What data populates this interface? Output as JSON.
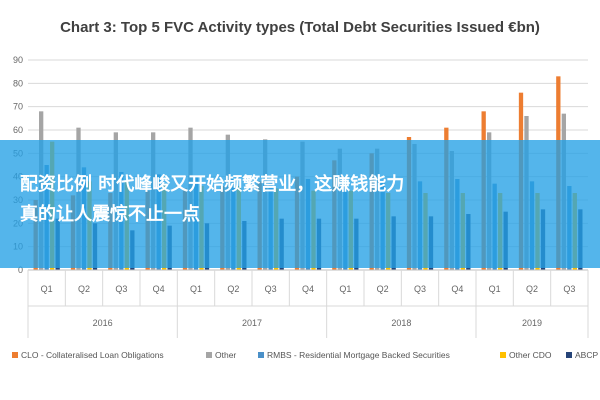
{
  "chart_data": {
    "type": "bar",
    "title": "Chart 3: Top 5 FVC Activity types (Total Debt Securities Issued €bn)",
    "ylim": [
      0,
      90
    ],
    "yticks": [
      0,
      10,
      20,
      30,
      40,
      50,
      60,
      70,
      80,
      90
    ],
    "grid": true,
    "legend_position": "bottom",
    "categories": [
      "Q1",
      "Q2",
      "Q3",
      "Q4",
      "Q1",
      "Q2",
      "Q3",
      "Q4",
      "Q1",
      "Q2",
      "Q3",
      "Q4",
      "Q1",
      "Q2",
      "Q3"
    ],
    "years": [
      {
        "label": "2016",
        "span": 4
      },
      {
        "label": "2017",
        "span": 4
      },
      {
        "label": "2018",
        "span": 4
      },
      {
        "label": "2019",
        "span": 3
      }
    ],
    "series": [
      {
        "name": "CLO - Collateralised Loan Obligations",
        "color": "#ed7d31",
        "values": [
          30,
          32,
          33,
          34,
          35,
          36,
          38,
          40,
          47,
          50,
          57,
          61,
          68,
          76,
          83
        ]
      },
      {
        "name": "Other",
        "color": "#a5a5a5",
        "values": [
          68,
          61,
          59,
          59,
          61,
          58,
          56,
          55,
          52,
          52,
          54,
          51,
          59,
          66,
          67
        ]
      },
      {
        "name": "RMBS - Residential Mortgage Backed Securities",
        "color": "#4a90c8",
        "values": [
          45,
          44,
          42,
          41,
          40,
          39,
          38,
          39,
          37,
          38,
          38,
          39,
          37,
          38,
          36
        ]
      },
      {
        "name": "Other CDO",
        "color": "#ffc000",
        "values": [
          55,
          38,
          38,
          37,
          36,
          36,
          35,
          34,
          34,
          33,
          33,
          33,
          33,
          33,
          33
        ]
      },
      {
        "name": "ABCP",
        "color": "#264478",
        "values": [
          22,
          20,
          17,
          19,
          20,
          21,
          22,
          22,
          22,
          23,
          23,
          24,
          25,
          26,
          26
        ]
      }
    ]
  },
  "overlay": {
    "line1": "配资比例 时代峰峻又开始频繁营业，这赚钱能力",
    "line2": "真的让人震惊不止一点"
  }
}
